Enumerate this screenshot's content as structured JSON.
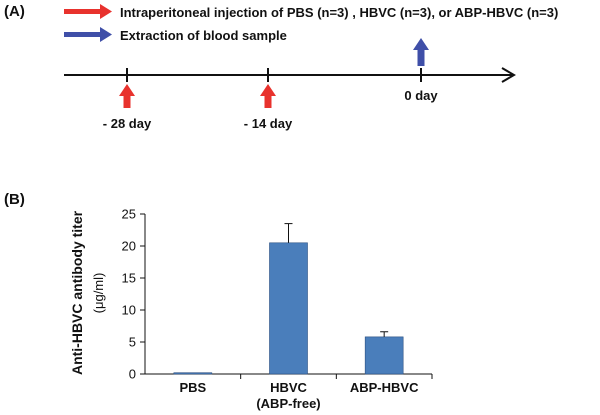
{
  "panel_a": {
    "label": "(A)",
    "legend": [
      {
        "text": "Intraperitoneal injection of PBS (n=3) , HBVC (n=3), or ABP-HBVC  (n=3)",
        "color": "#e8322d"
      },
      {
        "text": "Extraction of blood sample",
        "color": "#3f4fa8"
      }
    ],
    "timeline": [
      {
        "label": "- 28 day",
        "event": "injection"
      },
      {
        "label": "- 14 day",
        "event": "injection"
      },
      {
        "label": "0 day",
        "event": "extraction"
      }
    ]
  },
  "panel_b": {
    "label": "(B)"
  },
  "chart_data": {
    "type": "bar",
    "categories": [
      "PBS",
      "HBVC",
      "ABP-HBVC"
    ],
    "category_sublabels": [
      "",
      "(ABP-free)",
      ""
    ],
    "values": [
      0.2,
      20.5,
      5.8
    ],
    "error": [
      0,
      3.0,
      0.8
    ],
    "ylabel": "Anti-HBVC antibody titer",
    "ylabel_unit": "(μg/ml)",
    "ylim": [
      0,
      25
    ],
    "yticks": [
      "0",
      "5",
      "10",
      "15",
      "20",
      "25"
    ],
    "bar_color": "#4a7ebb",
    "grid": false
  }
}
